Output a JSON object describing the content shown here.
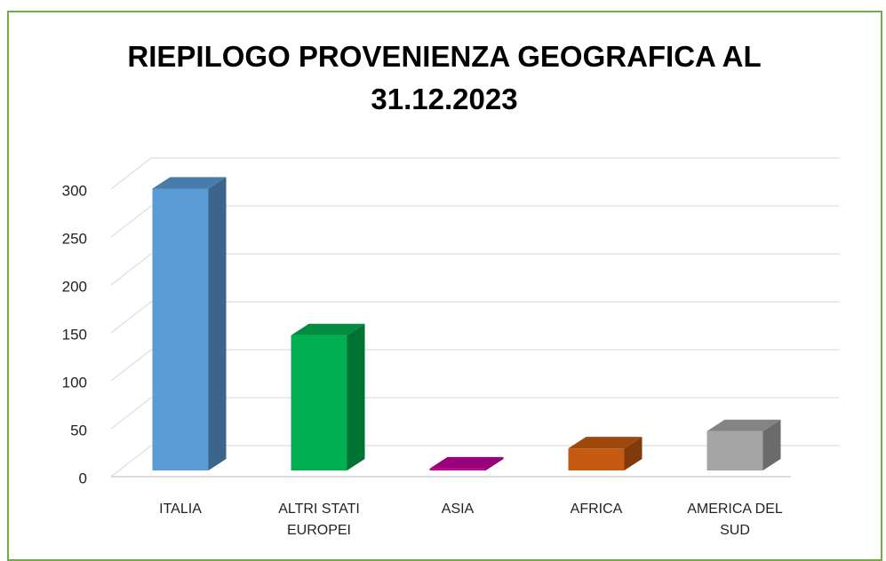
{
  "chart_data": {
    "type": "bar3d",
    "title": "RIEPILOGO PROVENIENZA GEOGRAFICA AL 31.12.2023",
    "categories": [
      "ITALIA",
      "ALTRI STATI EUROPEI",
      "ASIA",
      "AFRICA",
      "AMERICA DEL SUD"
    ],
    "values": [
      294,
      141,
      2,
      23,
      41
    ],
    "colors": [
      "#5b9bd5",
      "#00b050",
      "#c0009a",
      "#c55a11",
      "#a5a5a5"
    ],
    "ylim": [
      0,
      300
    ],
    "yticks": [
      0,
      50,
      100,
      150,
      200,
      250,
      300
    ],
    "grid": true
  }
}
